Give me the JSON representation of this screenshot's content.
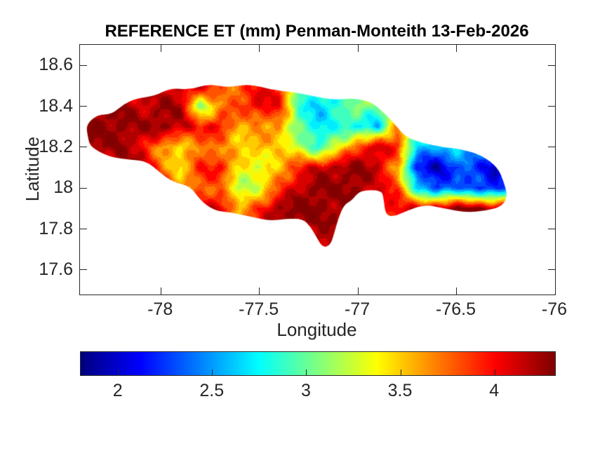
{
  "figure": {
    "title": "REFERENCE ET (mm) Penman-Monteith 13-Feb-2026",
    "background_color": "#ffffff",
    "text_color": "#262626",
    "axis_color": "#262626"
  },
  "chart_data": {
    "type": "heatmap",
    "title": "REFERENCE ET (mm) Penman-Monteith 13-Feb-2026",
    "xlabel": "Longitude",
    "ylabel": "Latitude",
    "xlim": [
      -78.41,
      -76.0
    ],
    "ylim": [
      17.48,
      18.7
    ],
    "xticks": [
      -78,
      -77.5,
      -77,
      -76.5,
      -76
    ],
    "xtick_labels": [
      "-78",
      "-77.5",
      "-77",
      "-76.5",
      "-76"
    ],
    "yticks": [
      18.6,
      18.4,
      18.2,
      18.0,
      17.8,
      17.6
    ],
    "ytick_labels": [
      "18.6",
      "18.4",
      "18.2",
      "18",
      "17.8",
      "17.6"
    ],
    "grid_lines": false,
    "colormap": "jet",
    "clim": [
      1.8,
      4.32
    ],
    "colorbar": {
      "orientation": "horizontal",
      "ticks": [
        2,
        2.5,
        3,
        3.5,
        4
      ],
      "tick_labels": [
        "2",
        "2.5",
        "3",
        "3.5",
        "4"
      ]
    },
    "units": "mm",
    "grid": {
      "lon_start": -78.4,
      "lon_step": 0.1,
      "n_lon": 23,
      "lat_start": 18.6,
      "lat_step": -0.1,
      "n_lat": 10,
      "values": [
        [
          4.2,
          4.2,
          4.15,
          4.05,
          4.0,
          4.1,
          4.1,
          3.85,
          3.8,
          4.0,
          4.05,
          3.1,
          2.8,
          2.85,
          3.0,
          2.95,
          3.1,
          2.9,
          2.8,
          2.8,
          2.85,
          2.9,
          3.0
        ],
        [
          4.25,
          4.25,
          4.2,
          4.1,
          4.05,
          4.15,
          4.1,
          3.85,
          3.75,
          4.0,
          4.05,
          3.0,
          2.8,
          2.85,
          3.05,
          2.95,
          3.2,
          2.9,
          2.8,
          2.8,
          2.85,
          2.9,
          3.0
        ],
        [
          4.3,
          4.3,
          4.25,
          4.15,
          4.25,
          4.2,
          3.1,
          3.6,
          3.9,
          4.1,
          3.95,
          2.9,
          2.6,
          2.8,
          3.2,
          3.0,
          3.1,
          2.9,
          2.85,
          2.85,
          2.9,
          3.0,
          3.05
        ],
        [
          4.3,
          4.3,
          4.3,
          4.2,
          4.3,
          4.2,
          3.9,
          4.1,
          3.5,
          3.6,
          3.7,
          2.95,
          2.7,
          2.85,
          2.7,
          2.6,
          3.8,
          3.0,
          2.85,
          2.9,
          3.0,
          3.1,
          3.15
        ],
        [
          4.25,
          4.25,
          4.25,
          4.1,
          3.6,
          3.4,
          3.8,
          3.6,
          3.5,
          3.6,
          3.4,
          3.3,
          2.8,
          3.3,
          3.9,
          4.15,
          3.9,
          2.7,
          2.5,
          2.7,
          2.6,
          2.9,
          3.0
        ],
        [
          4.0,
          4.05,
          4.15,
          4.25,
          3.8,
          3.4,
          3.9,
          4.05,
          3.4,
          3.25,
          3.6,
          3.9,
          4.15,
          4.25,
          4.3,
          4.15,
          3.6,
          2.1,
          1.95,
          2.3,
          2.2,
          1.95,
          2.5
        ],
        [
          3.9,
          3.9,
          4.0,
          4.1,
          3.9,
          3.7,
          3.8,
          3.7,
          3.2,
          3.3,
          3.8,
          4.2,
          4.3,
          4.25,
          4.3,
          4.05,
          3.9,
          2.7,
          2.2,
          2.4,
          2.3,
          2.1,
          2.5
        ],
        [
          3.9,
          3.9,
          4.0,
          4.2,
          4.3,
          4.25,
          4.1,
          4.2,
          3.5,
          3.9,
          4.3,
          4.3,
          4.3,
          4.25,
          4.2,
          4.05,
          4.0,
          4.1,
          4.25,
          4.3,
          4.3,
          4.25,
          4.2
        ],
        [
          3.9,
          3.9,
          4.0,
          4.15,
          4.25,
          4.2,
          4.1,
          4.15,
          3.7,
          4.0,
          4.25,
          4.3,
          4.2,
          4.2,
          4.2,
          4.1,
          4.1,
          4.15,
          4.25,
          4.3,
          4.3,
          4.25,
          4.2
        ],
        [
          3.9,
          3.9,
          4.0,
          4.1,
          4.2,
          4.2,
          4.1,
          4.1,
          3.8,
          4.0,
          4.2,
          4.3,
          4.3,
          4.2,
          4.2,
          4.1,
          4.1,
          4.15,
          4.2,
          4.3,
          4.3,
          4.25,
          4.2
        ]
      ]
    },
    "coastline": [
      [
        -78.37,
        18.25
      ],
      [
        -78.38,
        18.31
      ],
      [
        -78.32,
        18.36
      ],
      [
        -78.25,
        18.36
      ],
      [
        -78.19,
        18.41
      ],
      [
        -78.12,
        18.44
      ],
      [
        -78.03,
        18.45
      ],
      [
        -77.95,
        18.49
      ],
      [
        -77.85,
        18.48
      ],
      [
        -77.76,
        18.51
      ],
      [
        -77.66,
        18.49
      ],
      [
        -77.55,
        18.51
      ],
      [
        -77.44,
        18.48
      ],
      [
        -77.33,
        18.47
      ],
      [
        -77.23,
        18.45
      ],
      [
        -77.12,
        18.43
      ],
      [
        -77.02,
        18.44
      ],
      [
        -76.93,
        18.42
      ],
      [
        -76.87,
        18.37
      ],
      [
        -76.81,
        18.31
      ],
      [
        -76.76,
        18.25
      ],
      [
        -76.67,
        18.22
      ],
      [
        -76.57,
        18.2
      ],
      [
        -76.47,
        18.19
      ],
      [
        -76.37,
        18.16
      ],
      [
        -76.29,
        18.1
      ],
      [
        -76.26,
        18.03
      ],
      [
        -76.24,
        17.96
      ],
      [
        -76.27,
        17.91
      ],
      [
        -76.35,
        17.89
      ],
      [
        -76.45,
        17.88
      ],
      [
        -76.56,
        17.9
      ],
      [
        -76.66,
        17.92
      ],
      [
        -76.75,
        17.89
      ],
      [
        -76.82,
        17.86
      ],
      [
        -76.86,
        17.87
      ],
      [
        -76.87,
        17.95
      ],
      [
        -76.88,
        17.99
      ],
      [
        -76.99,
        17.99
      ],
      [
        -77.03,
        17.94
      ],
      [
        -77.07,
        17.92
      ],
      [
        -77.1,
        17.85
      ],
      [
        -77.12,
        17.78
      ],
      [
        -77.14,
        17.72
      ],
      [
        -77.18,
        17.71
      ],
      [
        -77.21,
        17.76
      ],
      [
        -77.24,
        17.81
      ],
      [
        -77.28,
        17.85
      ],
      [
        -77.36,
        17.85
      ],
      [
        -77.45,
        17.84
      ],
      [
        -77.54,
        17.86
      ],
      [
        -77.64,
        17.88
      ],
      [
        -77.73,
        17.89
      ],
      [
        -77.8,
        17.94
      ],
      [
        -77.85,
        18.01
      ],
      [
        -77.94,
        18.03
      ],
      [
        -78.01,
        18.08
      ],
      [
        -78.07,
        18.13
      ],
      [
        -78.16,
        18.14
      ],
      [
        -78.25,
        18.15
      ],
      [
        -78.32,
        18.18
      ],
      [
        -78.36,
        18.21
      ]
    ]
  }
}
